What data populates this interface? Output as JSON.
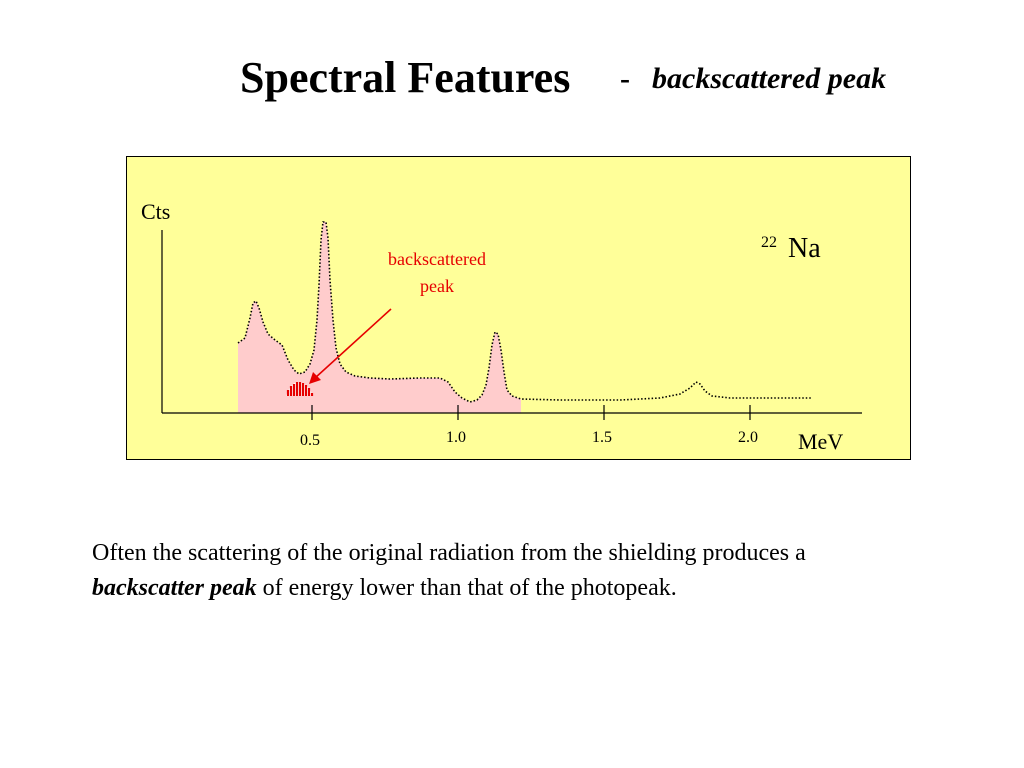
{
  "title": {
    "main": "Spectral Features",
    "dash": "-",
    "sub": "backscattered peak"
  },
  "diagram": {
    "y_label": "Cts",
    "x_label": "MeV",
    "isotope_mass": "22",
    "isotope_symbol": "Na",
    "annotation_line1": "backscattered",
    "annotation_line2": "peak",
    "x_ticks": [
      "0.5",
      "1.0",
      "1.5",
      "2.0"
    ],
    "colors": {
      "panel_background": "#ffff99",
      "shaded_region": "#ffcccc",
      "annotation": "#e60000",
      "curve": "#000000"
    }
  },
  "body": {
    "line1": "Often the scattering of the original radiation from the shielding produces a",
    "emph": "backscatter peak",
    "line2_rest": " of energy lower than that of the photopeak."
  }
}
